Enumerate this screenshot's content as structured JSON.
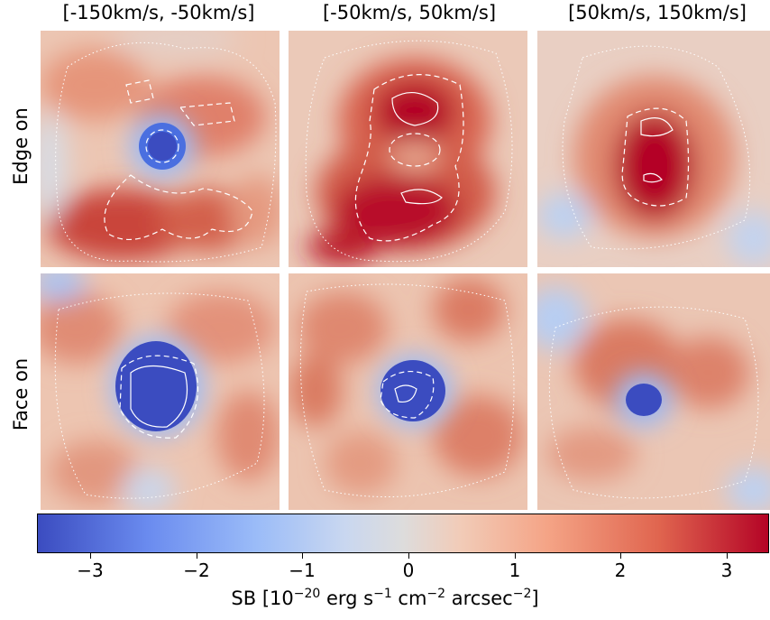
{
  "chart_data": {
    "type": "heatmap",
    "title": "",
    "columns": [
      "[-150km/s, -50km/s]",
      "[-50km/s, 50km/s]",
      "[50km/s, 150km/s]"
    ],
    "rows": [
      "Edge on",
      "Face on"
    ],
    "colorbar": {
      "label_prefix": "SB [10",
      "label_exp1": "−20",
      "label_mid1": " erg s",
      "label_exp2": "−1",
      "label_mid2": " cm",
      "label_exp3": "−2",
      "label_mid3": " arcsec",
      "label_exp4": "−2",
      "label_suffix": "]",
      "range": [
        -3.5,
        3.4
      ],
      "ticks": [
        "−3",
        "−2",
        "−1",
        "0",
        "1",
        "2",
        "3"
      ],
      "tick_values": [
        -3,
        -2,
        -1,
        0,
        1,
        2,
        3
      ],
      "colormap": "coolwarm"
    },
    "panels": [
      {
        "row": "Edge on",
        "column": "[-150km/s, -50km/s]",
        "min_value": -3.2,
        "max_value": 2.9
      },
      {
        "row": "Edge on",
        "column": "[-50km/s, 50km/s]",
        "min_value": 0.3,
        "max_value": 3.3
      },
      {
        "row": "Edge on",
        "column": "[50km/s, 150km/s]",
        "min_value": -0.8,
        "max_value": 3.3
      },
      {
        "row": "Face on",
        "column": "[-150km/s, -50km/s]",
        "min_value": -3.5,
        "max_value": 2.3
      },
      {
        "row": "Face on",
        "column": "[-50km/s, 50km/s]",
        "min_value": -3.3,
        "max_value": 2.5
      },
      {
        "row": "Face on",
        "column": "[50km/s, 150km/s]",
        "min_value": -2.8,
        "max_value": 2.5
      }
    ]
  }
}
